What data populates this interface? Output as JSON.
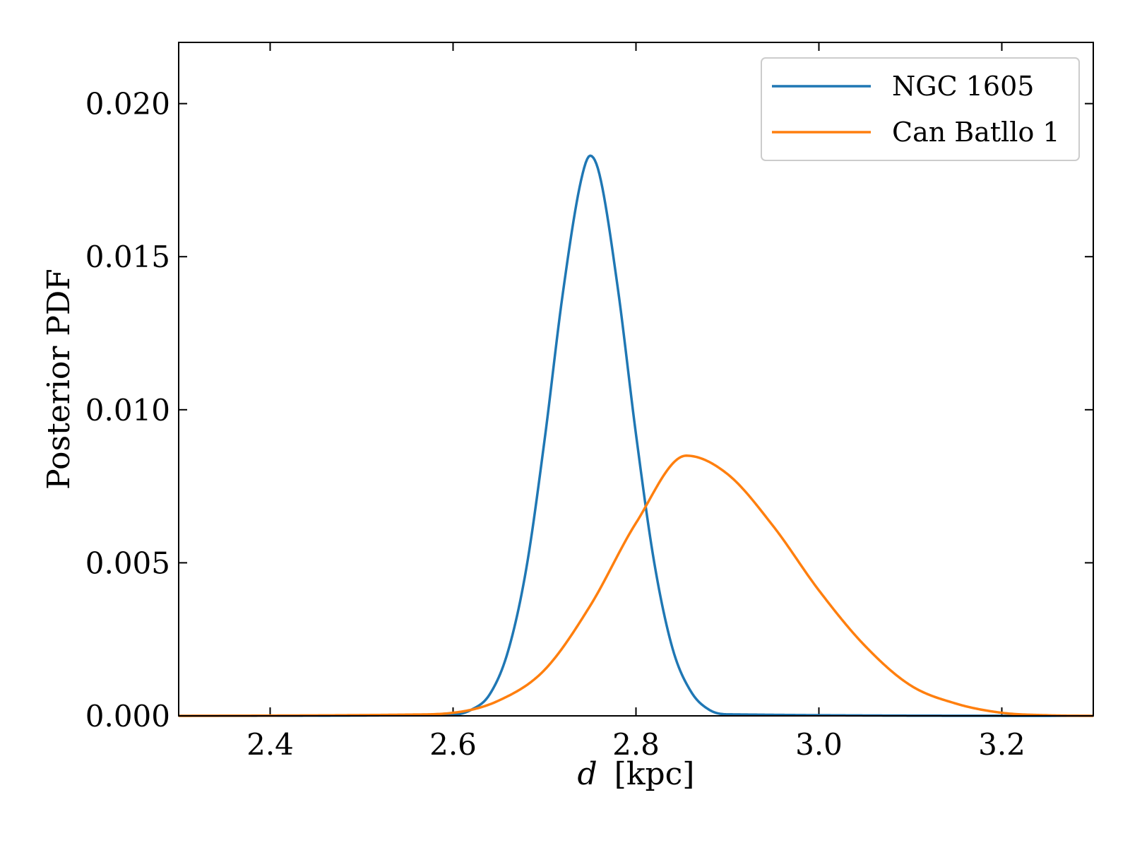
{
  "chart_data": {
    "type": "line",
    "title": "",
    "xlabel_var": "d",
    "xlabel_unit": "[kpc]",
    "ylabel": "Posterior PDF",
    "xlim": [
      2.3,
      3.3
    ],
    "ylim": [
      0,
      0.022
    ],
    "xticks": [
      2.4,
      2.6,
      2.8,
      3.0,
      3.2
    ],
    "xtick_labels": [
      "2.4",
      "2.6",
      "2.8",
      "3.0",
      "3.2"
    ],
    "yticks": [
      0,
      0.005,
      0.01,
      0.015,
      0.02
    ],
    "ytick_labels": [
      "0.000",
      "0.005",
      "0.010",
      "0.015",
      "0.020"
    ],
    "grid": false,
    "legend_position": "top-right",
    "series": [
      {
        "name": "NGC 1605",
        "color": "#1f77b4",
        "x": [
          2.3,
          2.6,
          2.62,
          2.64,
          2.66,
          2.68,
          2.7,
          2.72,
          2.74,
          2.75,
          2.76,
          2.78,
          2.8,
          2.82,
          2.84,
          2.86,
          2.88,
          2.9,
          3.3
        ],
        "y": [
          0.0,
          4e-05,
          0.0002,
          0.0007,
          0.0021,
          0.0048,
          0.009,
          0.0138,
          0.0175,
          0.0183,
          0.0177,
          0.014,
          0.0092,
          0.005,
          0.0022,
          0.0008,
          0.0002,
          5e-05,
          0.0
        ]
      },
      {
        "name": "Can Batllo 1",
        "color": "#ff7f0e",
        "x": [
          2.3,
          2.55,
          2.6,
          2.65,
          2.7,
          2.75,
          2.8,
          2.855,
          2.9,
          2.95,
          3.0,
          3.05,
          3.1,
          3.15,
          3.2,
          3.25,
          3.3
        ],
        "y": [
          0.0,
          4e-05,
          0.0001,
          0.0005,
          0.0015,
          0.0036,
          0.0063,
          0.0085,
          0.0079,
          0.0062,
          0.0041,
          0.0023,
          0.001,
          0.0004,
          0.0001,
          2e-05,
          0.0
        ]
      }
    ]
  }
}
